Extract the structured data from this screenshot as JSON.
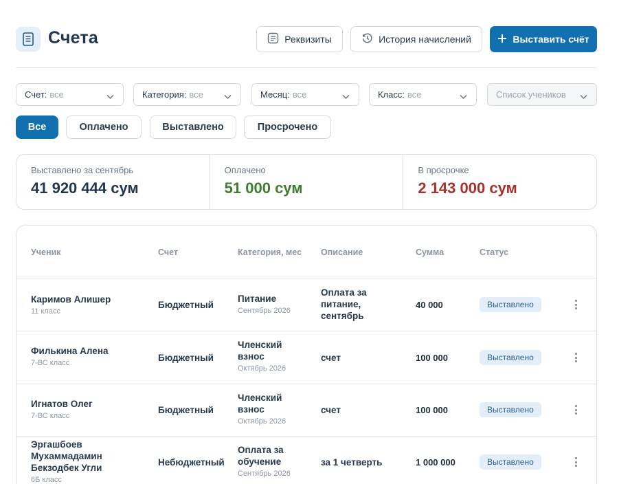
{
  "header": {
    "title": "Счета",
    "buttons": {
      "requisites": "Реквизиты",
      "history": "История начислений",
      "issue": "Выставить счёт"
    }
  },
  "filters": [
    {
      "label": "Счет:",
      "value": "все"
    },
    {
      "label": "Категория:",
      "value": "все"
    },
    {
      "label": "Месяц:",
      "value": "все"
    },
    {
      "label": "Класс:",
      "value": "все"
    },
    {
      "placeholder": "Список учеников"
    }
  ],
  "tabs": [
    "Все",
    "Оплачено",
    "Выставлено",
    "Просрочено"
  ],
  "active_tab": "Все",
  "stats": [
    {
      "label": "Выставлено за сентябрь",
      "value": "41 920 444 сум",
      "color": "#1f3550"
    },
    {
      "label": "Оплачено",
      "value": "51 000 сум",
      "color": "#3f7d2e"
    },
    {
      "label": "В просрочке",
      "value": "2 143 000 сум",
      "color": "#a8312b"
    }
  ],
  "table": {
    "columns": [
      "Ученик",
      "Счет",
      "Категория, мес",
      "Описание",
      "Сумма",
      "Статус"
    ],
    "rows": [
      {
        "name": "Каримов Алишер",
        "class": "11 класс",
        "account": "Бюджетный",
        "category": "Питание",
        "month": "Сентябрь 2026",
        "description": "Оплата за питание, сентябрь",
        "amount": "40 000",
        "status": "Выставлено"
      },
      {
        "name": "Филькина Алена",
        "class": "7-ВС класс",
        "account": "Бюджетный",
        "category": "Членский взнос",
        "month": "Октябрь 2026",
        "description": "счет",
        "amount": "100 000",
        "status": "Выставлено"
      },
      {
        "name": "Игнатов Олег",
        "class": "7-ВС класс",
        "account": "Бюджетный",
        "category": "Членский взнос",
        "month": "Октябрь 2026",
        "description": "счет",
        "amount": "100 000",
        "status": "Выставлено"
      },
      {
        "name": "Эргашбоев Мухаммадамин Бекзодбек Угли",
        "class": "6Б класс",
        "account": "Небюджетный",
        "category": "Оплата за обучение",
        "month": "Сентябрь 2026",
        "description": "за 1 четверть",
        "amount": "1 000 000",
        "status": "Выставлено"
      }
    ]
  },
  "icons": {
    "title": "invoice-icon",
    "requisites": "document-list-icon",
    "history": "history-icon",
    "issue": "plus-icon",
    "dropdown": "chevron-down-icon",
    "row_menu": "more-vertical-icon"
  }
}
